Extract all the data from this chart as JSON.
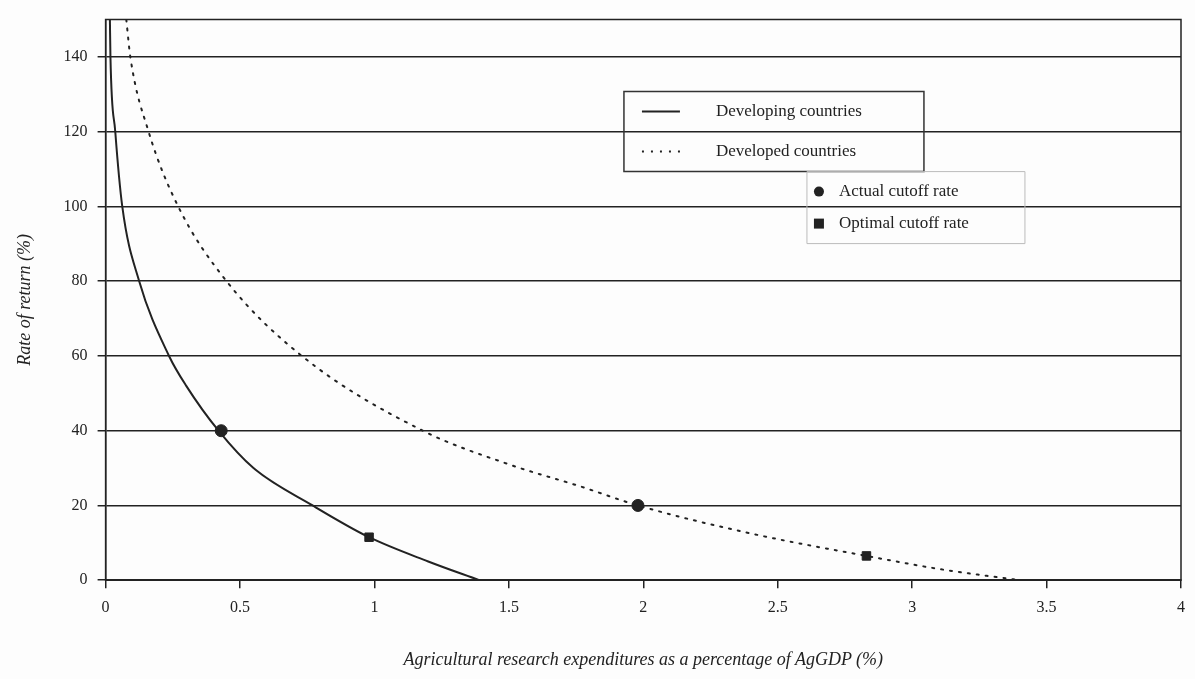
{
  "chart_data": {
    "type": "line",
    "xlabel": "Agricultural research expenditures as a percentage of AgGDP (%)",
    "ylabel": "Rate of return (%)",
    "series": [
      {
        "name": "Developing countries",
        "color": "#222222",
        "line_style": "solid",
        "marker": "none",
        "x": [
          0.016,
          0.018,
          0.036,
          0.062,
          0.125,
          0.236,
          0.3,
          0.42,
          0.55,
          0.77,
          0.98,
          1.2,
          1.39
        ],
        "values": [
          150,
          140,
          120,
          100,
          80,
          60,
          52,
          40,
          30,
          20,
          11.5,
          5,
          0
        ]
      },
      {
        "name": "Developed countries",
        "color": "#222222",
        "line_style": "dotted",
        "marker": "none",
        "x": [
          0.077,
          0.092,
          0.16,
          0.27,
          0.45,
          0.73,
          1.18,
          1.5,
          1.77,
          1.98,
          2.4,
          2.83,
          3.1,
          3.4
        ],
        "values": [
          150,
          140,
          120,
          100,
          80,
          60,
          40,
          31,
          25,
          20,
          12.5,
          6.5,
          3,
          0
        ]
      },
      {
        "name": "Actual cutoff rate",
        "type": "scatter",
        "color": "#222222",
        "marker": "circle",
        "x": [
          0.43,
          1.98
        ],
        "values": [
          40,
          20
        ]
      },
      {
        "name": "Optimal cutoff rate",
        "type": "scatter",
        "color": "#222222",
        "marker": "square",
        "x": [
          0.98,
          2.83
        ],
        "values": [
          11.5,
          6.5
        ]
      }
    ],
    "xlim": [
      0,
      4
    ],
    "xticks": [
      0,
      0.5,
      1,
      1.5,
      2,
      2.5,
      3,
      3.5,
      4
    ],
    "ylim": [
      0,
      150
    ],
    "yticks": [
      0,
      20,
      40,
      60,
      80,
      100,
      120,
      140
    ],
    "grid": "y",
    "legend": "top right"
  }
}
